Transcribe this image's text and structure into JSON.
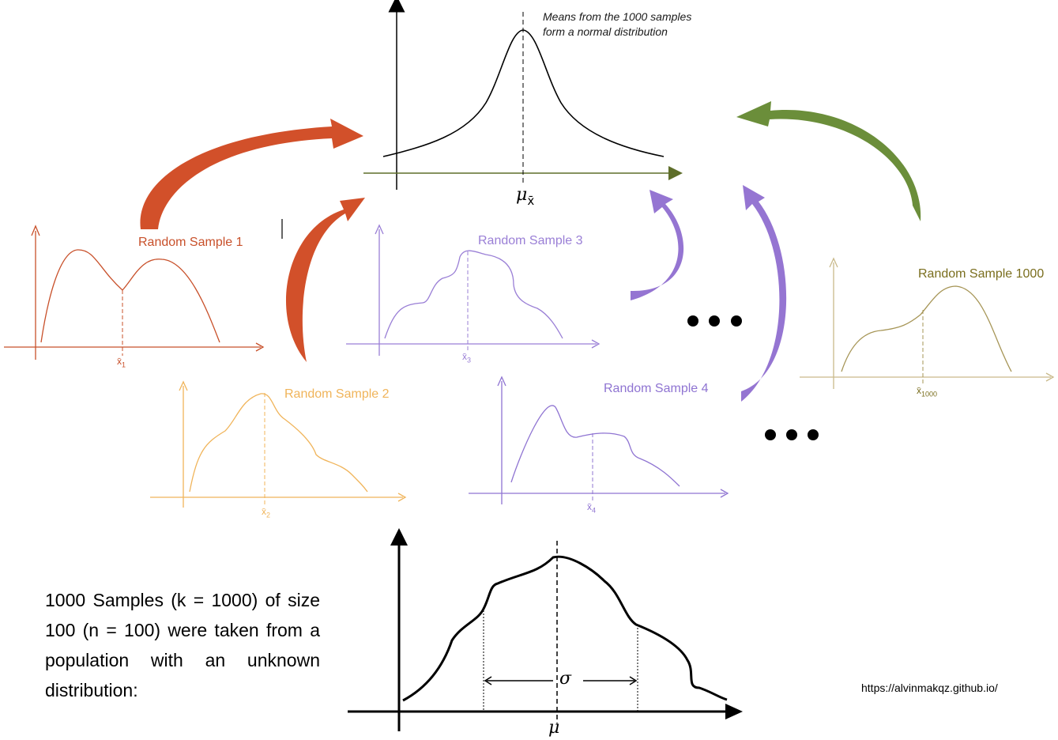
{
  "colors": {
    "sample1": "#c8502a",
    "sample2": "#f0b45a",
    "sample3": "#9a7fd6",
    "sample4": "#8f74d2",
    "sample1000": "#7a6e1e",
    "arrow_green": "#6b8e3a",
    "arrow_red": "#d2502a",
    "arrow_purple": "#9575d2",
    "main_axis": "#5e6e2a"
  },
  "sampling_distribution": {
    "note_line1": "Means from the 1000 samples",
    "note_line2": "form a normal distribution",
    "mean_symbol": "μ",
    "mean_subscript": "x̄"
  },
  "samples": [
    {
      "title": "Random Sample 1",
      "mean_label": "x̄",
      "mean_subscript": "1"
    },
    {
      "title": "Random Sample 2",
      "mean_label": "x̄",
      "mean_subscript": "2"
    },
    {
      "title": "Random Sample 3",
      "mean_label": "x̄",
      "mean_subscript": "3"
    },
    {
      "title": "Random Sample 4",
      "mean_label": "x̄",
      "mean_subscript": "4"
    },
    {
      "title": "Random Sample 1000",
      "mean_label": "x̄",
      "mean_subscript": "1000"
    }
  ],
  "population": {
    "description": "1000 Samples (k = 1000) of size 100 (n = 100) were taken from a population with an unknown distribution:",
    "sigma_symbol": "σ",
    "mu_symbol": "μ"
  },
  "url": "https://alvinmakqz.github.io/"
}
